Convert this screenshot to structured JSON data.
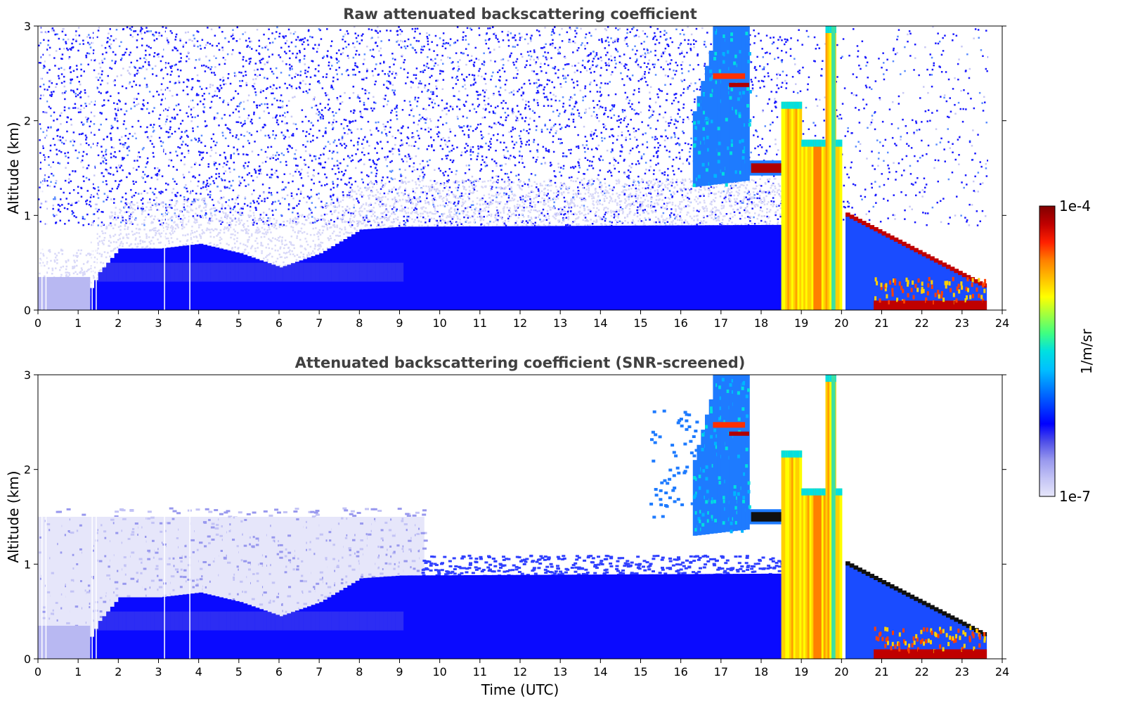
{
  "chart_data": [
    {
      "type": "heatmap",
      "title": "Raw attenuated backscattering coefficient",
      "xlabel": "",
      "ylabel": "Altitude (km)",
      "xlim": [
        0,
        24
      ],
      "ylim": [
        0,
        3
      ],
      "xticks": [
        "0",
        "1",
        "2",
        "3",
        "4",
        "5",
        "6",
        "7",
        "8",
        "9",
        "10",
        "11",
        "12",
        "13",
        "14",
        "15",
        "16",
        "17",
        "18",
        "19",
        "20",
        "21",
        "22",
        "23",
        "24"
      ],
      "yticks": [
        "0",
        "1",
        "2",
        "3"
      ],
      "background_noise": true
    },
    {
      "type": "heatmap",
      "title": "Attenuated backscattering coefficient (SNR-screened)",
      "xlabel": "Time (UTC)",
      "ylabel": "Altitude (km)",
      "xlim": [
        0,
        24
      ],
      "ylim": [
        0,
        3
      ],
      "xticks": [
        "0",
        "1",
        "2",
        "3",
        "4",
        "5",
        "6",
        "7",
        "8",
        "9",
        "10",
        "11",
        "12",
        "13",
        "14",
        "15",
        "16",
        "17",
        "18",
        "19",
        "20",
        "21",
        "22",
        "23",
        "24"
      ],
      "yticks": [
        "0",
        "1",
        "2",
        "3"
      ],
      "background_noise": false
    }
  ],
  "colorbar": {
    "max_label": "1e-4",
    "min_label": "1e-7",
    "unit_label": "1/m/sr",
    "scale": "log",
    "colors": [
      "#e6e6fa",
      "#c3c3f5",
      "#9898ee",
      "#5050e8",
      "#0000ff",
      "#0040ff",
      "#0080ff",
      "#00c0ff",
      "#00e0e0",
      "#40ff80",
      "#a0ff40",
      "#ffff00",
      "#ffc000",
      "#ff8000",
      "#ff2000",
      "#c00000",
      "#800000"
    ]
  },
  "structures": [
    {
      "t0": 0.0,
      "t1": 9.0,
      "h": [
        0.15,
        0.2,
        0.55,
        0.65,
        0.7,
        0.65,
        0.55,
        0.45,
        0.7,
        0.85
      ],
      "kind": "boundary-layer"
    },
    {
      "t0": 9.0,
      "t1": 18.5,
      "h": 0.9,
      "kind": "boundary-layer"
    },
    {
      "t0": 16.3,
      "t1": 17.7,
      "hmin": 1.3,
      "hmax": 3.0,
      "kind": "cloud-mid"
    },
    {
      "t0": 17.7,
      "t1": 18.5,
      "hmin": 1.45,
      "hmax": 1.55,
      "kind": "cloud-layer"
    },
    {
      "t0": 18.5,
      "t1": 19.9,
      "hmin": 0.0,
      "hmax": 3.0,
      "kind": "precip"
    },
    {
      "t0": 20.1,
      "t1": 23.6,
      "hmin": 0.2,
      "hmax": 1.0,
      "kind": "descending-layer"
    }
  ]
}
